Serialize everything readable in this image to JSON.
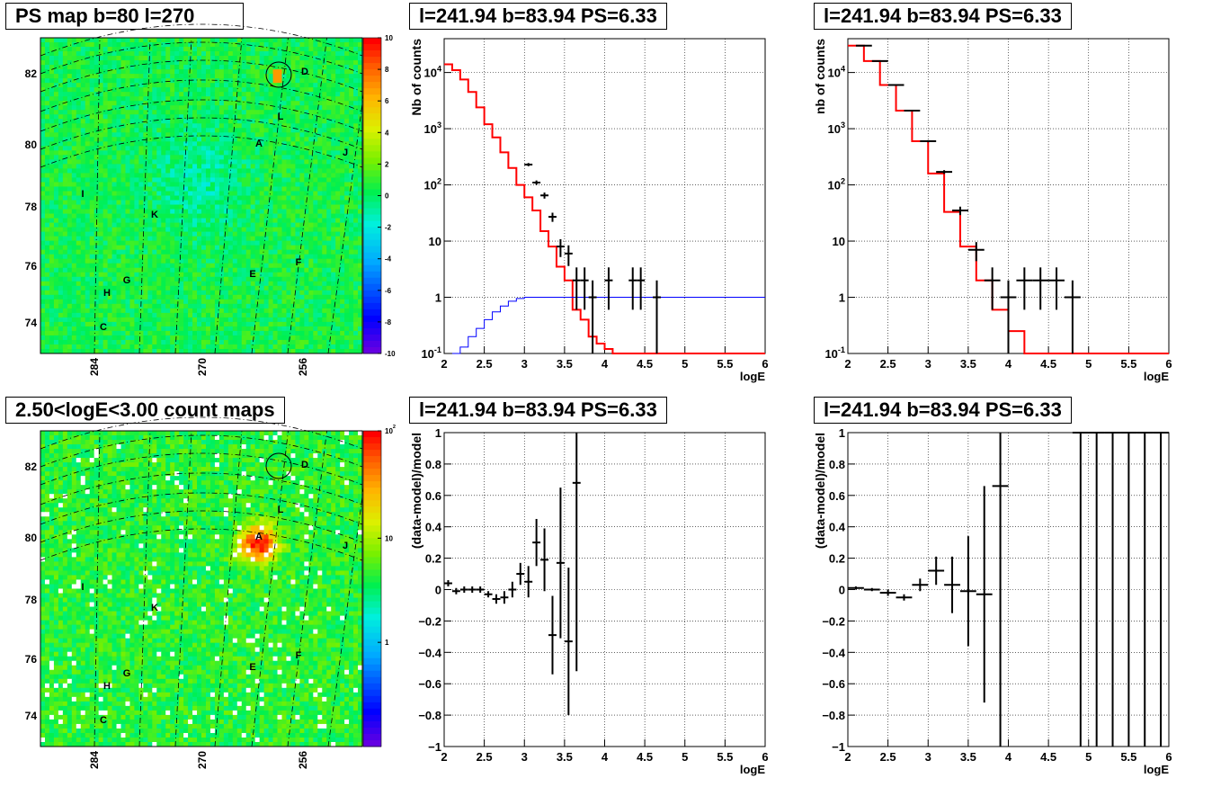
{
  "chart_data": [
    {
      "type": "heatmap",
      "title": "PS map b=80 l=270",
      "yticks": [
        "82",
        "80",
        "78",
        "76",
        "74"
      ],
      "xticks": [
        "284",
        "270",
        "256"
      ],
      "colorbar": {
        "ticks": [
          "10",
          "8",
          "6",
          "4",
          "2",
          "0",
          "-2",
          "-4",
          "-6",
          "-8",
          "-10"
        ],
        "range": [
          -10,
          10
        ],
        "log": false
      },
      "labels": [
        "D",
        "L",
        "A",
        "J",
        "I",
        "K",
        "E",
        "F",
        "G",
        "H",
        "C"
      ]
    },
    {
      "type": "line",
      "title": "l=241.94 b=83.94 PS=6.33",
      "xlabel": "logE",
      "ylabel": "Nb of counts",
      "xlim": [
        2,
        6
      ],
      "ylim": [
        0.1,
        40000
      ],
      "ylog": true,
      "grid": true,
      "xticks": [
        "2",
        "2.5",
        "3",
        "3.5",
        "4",
        "4.5",
        "5",
        "5.5",
        "6"
      ],
      "yticks": [
        "10^4",
        "10^3",
        "10^2",
        "10",
        "1",
        "10^-1"
      ],
      "bin_width": 0.1,
      "data_points": [
        {
          "x": 3.0,
          "y": 230,
          "err": 15
        },
        {
          "x": 3.1,
          "y": 110,
          "err": 10
        },
        {
          "x": 3.2,
          "y": 65,
          "err": 8
        },
        {
          "x": 3.3,
          "y": 27,
          "err": 5
        },
        {
          "x": 3.4,
          "y": 8,
          "err": 2.8
        },
        {
          "x": 3.5,
          "y": 6,
          "err": 2.4
        },
        {
          "x": 3.6,
          "y": 2,
          "err": 1.4
        },
        {
          "x": 3.7,
          "y": 2,
          "err": 1.4
        },
        {
          "x": 3.8,
          "y": 1,
          "err": 1
        },
        {
          "x": 4.0,
          "y": 2,
          "err": 1.4
        },
        {
          "x": 4.3,
          "y": 2,
          "err": 1.4
        },
        {
          "x": 4.4,
          "y": 2,
          "err": 1.4
        },
        {
          "x": 4.6,
          "y": 1,
          "err": 1
        }
      ],
      "series": [
        {
          "name": "",
          "color": "#ff0000",
          "x": [
            2.0,
            2.1,
            2.2,
            2.3,
            2.4,
            2.5,
            2.6,
            2.7,
            2.8,
            2.9,
            3.0,
            3.1,
            3.2,
            3.3,
            3.4,
            3.5,
            3.6,
            3.7,
            3.8,
            3.9,
            4.0,
            4.1,
            4.2
          ],
          "values": [
            14000,
            11000,
            7500,
            4500,
            2400,
            1200,
            700,
            380,
            200,
            100,
            60,
            35,
            15,
            8,
            3.5,
            2,
            0.6,
            0.4,
            0.2,
            0.15,
            0.12,
            0.1,
            0.1
          ]
        },
        {
          "name": "",
          "color": "#0000ff",
          "x": [
            2.1,
            2.2,
            2.3,
            2.4,
            2.5,
            2.6,
            2.7,
            2.8,
            2.9,
            3.0,
            3.1,
            3.2
          ],
          "values": [
            0.1,
            0.13,
            0.2,
            0.28,
            0.4,
            0.55,
            0.7,
            0.85,
            0.95,
            1,
            1,
            1
          ]
        }
      ]
    },
    {
      "type": "line",
      "title": "l=241.94 b=83.94 PS=6.33",
      "xlabel": "logE",
      "ylabel": "nb of counts",
      "xlim": [
        2,
        6
      ],
      "ylim": [
        0.1,
        40000
      ],
      "ylog": true,
      "grid": true,
      "xticks": [
        "2",
        "2.5",
        "3",
        "3.5",
        "4",
        "4.5",
        "5",
        "5.5",
        "6"
      ],
      "yticks": [
        "10^4",
        "10^3",
        "10^2",
        "10",
        "1",
        "10^-1"
      ],
      "bin_width": 0.2,
      "data_points": [
        {
          "x": 2.1,
          "y": 30000,
          "err": 170
        },
        {
          "x": 2.3,
          "y": 16000,
          "err": 130
        },
        {
          "x": 2.5,
          "y": 6000,
          "err": 80
        },
        {
          "x": 2.7,
          "y": 2100,
          "err": 45
        },
        {
          "x": 2.9,
          "y": 600,
          "err": 25
        },
        {
          "x": 3.1,
          "y": 170,
          "err": 13
        },
        {
          "x": 3.3,
          "y": 35,
          "err": 6
        },
        {
          "x": 3.5,
          "y": 7,
          "err": 2.6
        },
        {
          "x": 3.7,
          "y": 2,
          "err": 1.4
        },
        {
          "x": 3.9,
          "y": 1,
          "err": 1
        },
        {
          "x": 4.1,
          "y": 2,
          "err": 1.4
        },
        {
          "x": 4.3,
          "y": 2,
          "err": 1.4
        },
        {
          "x": 4.5,
          "y": 2,
          "err": 1.4
        },
        {
          "x": 4.7,
          "y": 1,
          "err": 1
        }
      ],
      "series": [
        {
          "name": "",
          "color": "#ff0000",
          "x": [
            2.0,
            2.2,
            2.4,
            2.6,
            2.8,
            3.0,
            3.2,
            3.4,
            3.6,
            3.8,
            4.0,
            4.2
          ],
          "values": [
            30000,
            16000,
            6000,
            2100,
            600,
            160,
            33,
            8,
            2,
            0.6,
            0.25,
            0.1
          ]
        }
      ]
    },
    {
      "type": "heatmap",
      "title": "2.50<logE<3.00 count maps",
      "yticks": [
        "82",
        "80",
        "78",
        "76",
        "74"
      ],
      "xticks": [
        "284",
        "270",
        "256"
      ],
      "colorbar": {
        "ticks": [
          "10^2",
          "10",
          "1"
        ],
        "range": [
          0.3,
          150
        ],
        "log": true
      },
      "labels": [
        "D",
        "L",
        "A",
        "J",
        "I",
        "K",
        "E",
        "F",
        "G",
        "H",
        "C"
      ]
    },
    {
      "type": "scatter",
      "title": "l=241.94 b=83.94 PS=6.33",
      "xlabel": "logE",
      "ylabel": "(data-model)/model",
      "xlim": [
        2,
        6
      ],
      "ylim": [
        -1,
        1
      ],
      "grid": true,
      "xticks": [
        "2",
        "2.5",
        "3",
        "3.5",
        "4",
        "4.5",
        "5",
        "5.5",
        "6"
      ],
      "yticks": [
        "1",
        "0.8",
        "0.6",
        "0.4",
        "0.2",
        "0",
        "-0.2",
        "-0.4",
        "-0.6",
        "-0.8",
        "-1"
      ],
      "bin_width": 0.1,
      "points": [
        {
          "x": 2.05,
          "y": 0.04,
          "err": 0.02
        },
        {
          "x": 2.15,
          "y": -0.01,
          "err": 0.02
        },
        {
          "x": 2.25,
          "y": 0,
          "err": 0.02
        },
        {
          "x": 2.35,
          "y": 0,
          "err": 0.02
        },
        {
          "x": 2.45,
          "y": 0,
          "err": 0.02
        },
        {
          "x": 2.55,
          "y": -0.03,
          "err": 0.02
        },
        {
          "x": 2.65,
          "y": -0.06,
          "err": 0.03
        },
        {
          "x": 2.75,
          "y": -0.05,
          "err": 0.04
        },
        {
          "x": 2.85,
          "y": 0,
          "err": 0.05
        },
        {
          "x": 2.95,
          "y": 0.1,
          "err": 0.07
        },
        {
          "x": 3.05,
          "y": 0.05,
          "err": 0.1
        },
        {
          "x": 3.15,
          "y": 0.3,
          "err": 0.15
        },
        {
          "x": 3.25,
          "y": 0.19,
          "err": 0.2
        },
        {
          "x": 3.35,
          "y": -0.29,
          "err": 0.25
        },
        {
          "x": 3.45,
          "y": 0.17,
          "err": 0.48
        },
        {
          "x": 3.55,
          "y": -0.33,
          "err": 0.47
        },
        {
          "x": 3.65,
          "y": 0.68,
          "err": 1.2
        }
      ]
    },
    {
      "type": "scatter",
      "title": "l=241.94 b=83.94 PS=6.33",
      "xlabel": "logE",
      "ylabel": "(data-model)/model",
      "xlim": [
        2,
        6
      ],
      "ylim": [
        -1,
        1
      ],
      "grid": true,
      "xticks": [
        "2",
        "2.5",
        "3",
        "3.5",
        "4",
        "4.5",
        "5",
        "5.5",
        "6"
      ],
      "yticks": [
        "1",
        "0.8",
        "0.6",
        "0.4",
        "0.2",
        "0",
        "-0.2",
        "-0.4",
        "-0.6",
        "-0.8",
        "-1"
      ],
      "bin_width": 0.2,
      "points": [
        {
          "x": 2.1,
          "y": 0.01,
          "err": 0.01
        },
        {
          "x": 2.3,
          "y": 0,
          "err": 0.01
        },
        {
          "x": 2.5,
          "y": -0.02,
          "err": 0.02
        },
        {
          "x": 2.7,
          "y": -0.05,
          "err": 0.02
        },
        {
          "x": 2.9,
          "y": 0.03,
          "err": 0.04
        },
        {
          "x": 3.1,
          "y": 0.12,
          "err": 0.09
        },
        {
          "x": 3.3,
          "y": 0.03,
          "err": 0.18
        },
        {
          "x": 3.5,
          "y": -0.01,
          "err": 0.35
        },
        {
          "x": 3.7,
          "y": -0.03,
          "err": 0.69
        },
        {
          "x": 3.9,
          "y": 0.66,
          "err": 1.7
        },
        {
          "x": 4.9,
          "y": 1,
          "err": 2
        },
        {
          "x": 5.1,
          "y": 1,
          "err": 2
        },
        {
          "x": 5.3,
          "y": 1,
          "err": 2
        },
        {
          "x": 5.5,
          "y": 1,
          "err": 2
        },
        {
          "x": 5.7,
          "y": 1,
          "err": 2
        },
        {
          "x": 5.9,
          "y": 1,
          "err": 2
        }
      ]
    }
  ]
}
